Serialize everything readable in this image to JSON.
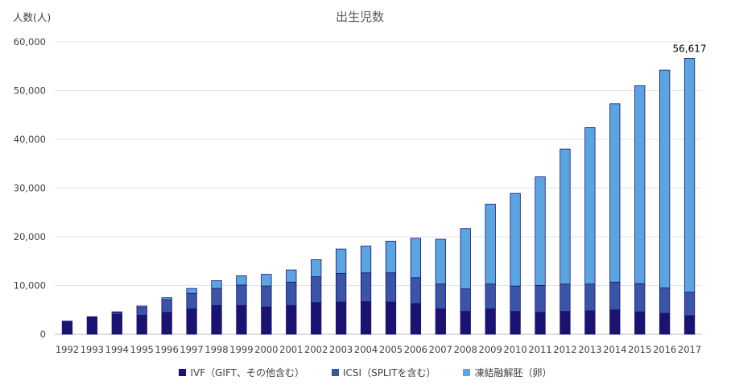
{
  "chart_data": {
    "type": "bar",
    "stacked": true,
    "title": "出生児数",
    "ylabel": "人数(人)",
    "xlabel": "",
    "ylim": [
      0,
      60000
    ],
    "yticks": [
      0,
      10000,
      20000,
      30000,
      40000,
      50000,
      60000
    ],
    "ytick_labels": [
      "0",
      "10,000",
      "20,000",
      "30,000",
      "40,000",
      "50,000",
      "60,000"
    ],
    "grid": true,
    "legend_position": "bottom",
    "categories": [
      "1992",
      "1993",
      "1994",
      "1995",
      "1996",
      "1997",
      "1998",
      "1999",
      "2000",
      "2001",
      "2002",
      "2003",
      "2004",
      "2005",
      "2006",
      "2007",
      "2008",
      "2009",
      "2010",
      "2011",
      "2012",
      "2013",
      "2014",
      "2015",
      "2016",
      "2017"
    ],
    "series": [
      {
        "name": "IVF（GIFT、その他含む）",
        "color": "#1a1372",
        "values": [
          2700,
          3500,
          4100,
          3900,
          4500,
          5200,
          5900,
          5900,
          5600,
          5900,
          6500,
          6600,
          6700,
          6600,
          6300,
          5200,
          4700,
          5200,
          4700,
          4500,
          4700,
          4800,
          5000,
          4600,
          4300,
          3800
        ]
      },
      {
        "name": "ICSI（SPLITを含む）",
        "color": "#3b55a6",
        "values": [
          0,
          100,
          400,
          1600,
          2600,
          3200,
          3500,
          4200,
          4300,
          4800,
          5300,
          5900,
          5900,
          6000,
          5300,
          5100,
          4600,
          5100,
          5200,
          5500,
          5600,
          5500,
          5700,
          5800,
          5200,
          4800
        ]
      },
      {
        "name": "凍結融解胚（卵）",
        "color": "#5aa5e1",
        "values": [
          0,
          0,
          100,
          300,
          400,
          1000,
          1600,
          1900,
          2400,
          2500,
          3500,
          5000,
          5500,
          6500,
          8100,
          9200,
          12400,
          16400,
          19000,
          22300,
          27700,
          32100,
          36600,
          40600,
          44700,
          48017
        ]
      }
    ],
    "annotations": [
      {
        "category": "2017",
        "text": "56,617"
      }
    ]
  }
}
